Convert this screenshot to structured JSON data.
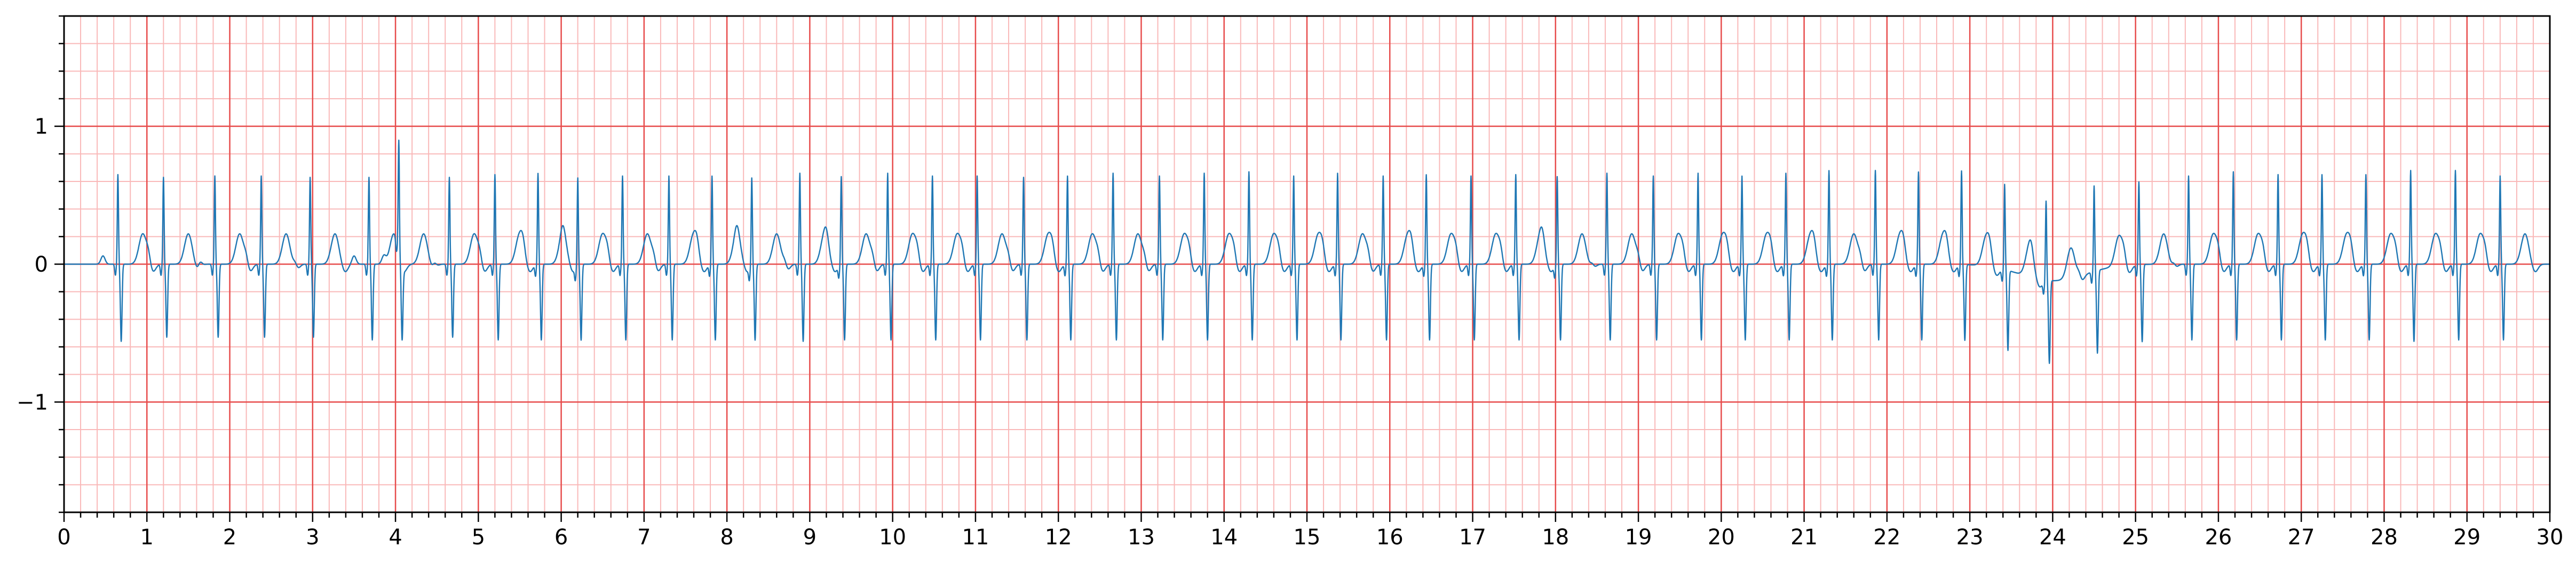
{
  "chart_data": {
    "type": "line",
    "title": "",
    "xlabel": "",
    "ylabel": "",
    "xlim": [
      0,
      30
    ],
    "ylim": [
      -1.8,
      1.8
    ],
    "x_ticks": [
      0,
      1,
      2,
      3,
      4,
      5,
      6,
      7,
      8,
      9,
      10,
      11,
      12,
      13,
      14,
      15,
      16,
      17,
      18,
      19,
      20,
      21,
      22,
      23,
      24,
      25,
      26,
      27,
      28,
      29,
      30
    ],
    "x_tick_labels": [
      "0",
      "1",
      "2",
      "3",
      "4",
      "5",
      "6",
      "7",
      "8",
      "9",
      "10",
      "11",
      "12",
      "13",
      "14",
      "15",
      "16",
      "17",
      "18",
      "19",
      "20",
      "21",
      "22",
      "23",
      "24",
      "25",
      "26",
      "27",
      "28",
      "29",
      "30"
    ],
    "y_ticks": [
      -1,
      0,
      1
    ],
    "y_tick_labels": [
      "−1",
      "0",
      "1"
    ],
    "grid": {
      "major": true,
      "minor": true,
      "major_step_x": 1,
      "minor_step_x": 0.2,
      "major_step_y": 1,
      "minor_step_y": 0.2
    },
    "colors": {
      "major_grid": "#e74c4c",
      "minor_grid": "#f9b9b9",
      "trace": "#1f77b4",
      "axes": "#000000"
    },
    "series": [
      {
        "name": "",
        "sample_rate_hz": 20,
        "x_start": 0,
        "x_end": 30,
        "beat_times": [
          0.65,
          1.2,
          1.82,
          2.38,
          2.97,
          3.68,
          4.04,
          4.65,
          5.2,
          5.72,
          6.2,
          6.74,
          7.3,
          7.82,
          8.3,
          8.88,
          9.38,
          9.94,
          10.48,
          11.02,
          11.58,
          12.11,
          12.66,
          13.22,
          13.76,
          14.3,
          14.84,
          15.37,
          15.92,
          16.44,
          16.98,
          17.52,
          18.02,
          18.62,
          19.18,
          19.72,
          20.25,
          20.78,
          21.3,
          21.86,
          22.38,
          22.9,
          23.42,
          23.92,
          24.5,
          25.04,
          25.64,
          26.18,
          26.72,
          27.25,
          27.78,
          28.32,
          28.86,
          29.4
        ],
        "r_peak_values": [
          0.65,
          0.63,
          0.64,
          0.64,
          0.63,
          0.63,
          0.82,
          0.63,
          0.65,
          0.66,
          0.64,
          0.64,
          0.64,
          0.64,
          0.64,
          0.66,
          0.64,
          0.66,
          0.64,
          0.64,
          0.63,
          0.64,
          0.66,
          0.64,
          0.66,
          0.67,
          0.64,
          0.66,
          0.64,
          0.65,
          0.64,
          0.65,
          0.64,
          0.66,
          0.64,
          0.66,
          0.64,
          0.66,
          0.68,
          0.68,
          0.67,
          0.68,
          0.62,
          0.58,
          0.62,
          0.6,
          0.64,
          0.67,
          0.65,
          0.65,
          0.65,
          0.68,
          0.68,
          0.64
        ],
        "s_trough_values": [
          -0.56,
          -0.53,
          -0.53,
          -0.53,
          -0.53,
          -0.55,
          -0.52,
          -0.53,
          -0.55,
          -0.55,
          -0.55,
          -0.55,
          -0.55,
          -0.55,
          -0.55,
          -0.56,
          -0.55,
          -0.55,
          -0.55,
          -0.55,
          -0.55,
          -0.55,
          -0.55,
          -0.55,
          -0.55,
          -0.55,
          -0.55,
          -0.55,
          -0.55,
          -0.55,
          -0.55,
          -0.55,
          -0.55,
          -0.55,
          -0.55,
          -0.55,
          -0.55,
          -0.55,
          -0.55,
          -0.55,
          -0.55,
          -0.55,
          -0.58,
          -0.6,
          -0.6,
          -0.56,
          -0.55,
          -0.55,
          -0.55,
          -0.55,
          -0.55,
          -0.56,
          -0.55,
          -0.55
        ],
        "t_wave_peak": 0.22
      }
    ]
  }
}
